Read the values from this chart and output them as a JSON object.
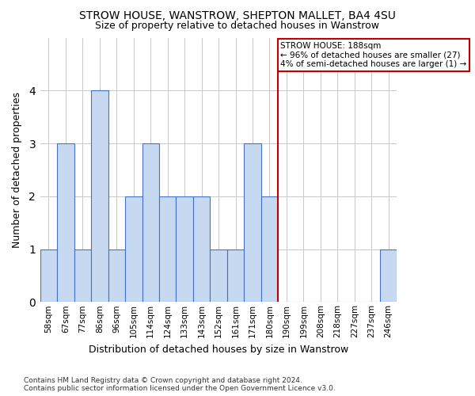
{
  "title": "STROW HOUSE, WANSTROW, SHEPTON MALLET, BA4 4SU",
  "subtitle": "Size of property relative to detached houses in Wanstrow",
  "xlabel": "Distribution of detached houses by size in Wanstrow",
  "ylabel": "Number of detached properties",
  "bar_labels": [
    "58sqm",
    "67sqm",
    "77sqm",
    "86sqm",
    "96sqm",
    "105sqm",
    "114sqm",
    "124sqm",
    "133sqm",
    "143sqm",
    "152sqm",
    "161sqm",
    "171sqm",
    "180sqm",
    "190sqm",
    "199sqm",
    "208sqm",
    "218sqm",
    "227sqm",
    "237sqm",
    "246sqm"
  ],
  "bar_values": [
    1,
    3,
    1,
    4,
    1,
    2,
    3,
    2,
    2,
    2,
    1,
    1,
    3,
    2,
    0,
    0,
    0,
    0,
    0,
    0,
    1
  ],
  "bar_color": "#c6d9f1",
  "bar_edge_color": "#4472c4",
  "vline_index": 13,
  "vline_color": "#c00000",
  "annotation_line1": "STROW HOUSE: 188sqm",
  "annotation_line2": "← 96% of detached houses are smaller (27)",
  "annotation_line3": "4% of semi-detached houses are larger (1) →",
  "ylim": [
    0,
    5
  ],
  "yticks": [
    0,
    1,
    2,
    3,
    4
  ],
  "background_color": "#ffffff",
  "grid_color": "#c8c8c8",
  "footnote_line1": "Contains HM Land Registry data © Crown copyright and database right 2024.",
  "footnote_line2": "Contains public sector information licensed under the Open Government Licence v3.0."
}
